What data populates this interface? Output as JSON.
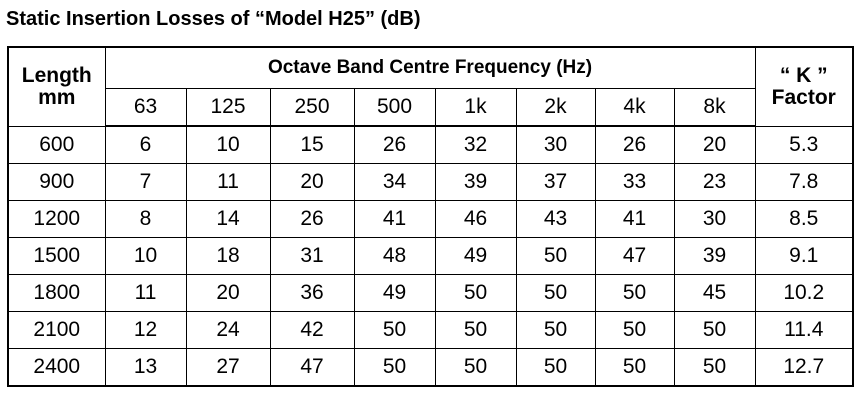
{
  "title": "Static Insertion Losses of “Model H25” (dB)",
  "table": {
    "length_header_line1": "Length",
    "length_header_line2": "mm",
    "span_header": "Octave Band Centre Frequency (Hz)",
    "k_header_line1": "“ K ”",
    "k_header_line2": "Factor",
    "frequencies": [
      "63",
      "125",
      "250",
      "500",
      "1k",
      "2k",
      "4k",
      "8k"
    ],
    "rows": [
      {
        "length": "600",
        "values": [
          "6",
          "10",
          "15",
          "26",
          "32",
          "30",
          "26",
          "20"
        ],
        "k": "5.3"
      },
      {
        "length": "900",
        "values": [
          "7",
          "11",
          "20",
          "34",
          "39",
          "37",
          "33",
          "23"
        ],
        "k": "7.8"
      },
      {
        "length": "1200",
        "values": [
          "8",
          "14",
          "26",
          "41",
          "46",
          "43",
          "41",
          "30"
        ],
        "k": "8.5"
      },
      {
        "length": "1500",
        "values": [
          "10",
          "18",
          "31",
          "48",
          "49",
          "50",
          "47",
          "39"
        ],
        "k": "9.1"
      },
      {
        "length": "1800",
        "values": [
          "11",
          "20",
          "36",
          "49",
          "50",
          "50",
          "50",
          "45"
        ],
        "k": "10.2"
      },
      {
        "length": "2100",
        "values": [
          "12",
          "24",
          "42",
          "50",
          "50",
          "50",
          "50",
          "50"
        ],
        "k": "11.4"
      },
      {
        "length": "2400",
        "values": [
          "13",
          "27",
          "47",
          "50",
          "50",
          "50",
          "50",
          "50"
        ],
        "k": "12.7"
      }
    ]
  }
}
